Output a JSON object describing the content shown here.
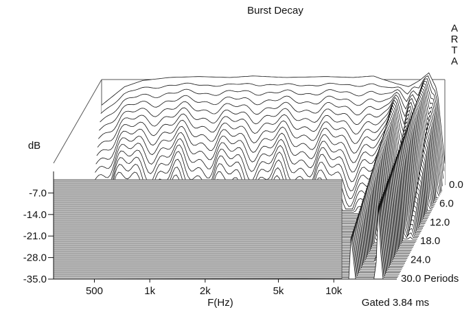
{
  "chart_data": {
    "type": "waterfall",
    "title": "Burst Decay",
    "watermark": "ARTA",
    "xlabel": "F(Hz)",
    "ylabel": "dB",
    "zlabel": "Periods",
    "footer": "Gated 3.84 ms",
    "x_scale": "log",
    "xlim": [
      300,
      22000
    ],
    "x_ticks": [
      {
        "label": "500",
        "value": 500
      },
      {
        "label": "1k",
        "value": 1000
      },
      {
        "label": "2k",
        "value": 2000
      },
      {
        "label": "5k",
        "value": 5000
      },
      {
        "label": "10k",
        "value": 10000
      }
    ],
    "y_ticks": [
      {
        "label": "-7.0",
        "value": -7
      },
      {
        "label": "-14.0",
        "value": -14
      },
      {
        "label": "-21.0",
        "value": -21
      },
      {
        "label": "-28.0",
        "value": -28
      },
      {
        "label": "-35.0",
        "value": -35
      }
    ],
    "ylim": [
      -35,
      0
    ],
    "z_ticks": [
      {
        "label": "0.0",
        "value": 0
      },
      {
        "label": "6.0",
        "value": 6
      },
      {
        "label": "12.0",
        "value": 12
      },
      {
        "label": "18.0",
        "value": 18
      },
      {
        "label": "24.0",
        "value": 24
      },
      {
        "label": "30.0 Periods",
        "value": 30
      }
    ],
    "zlim": [
      0,
      30
    ],
    "slice_count": 60,
    "first_slice": {
      "freq_hz": [
        300,
        400,
        500,
        700,
        1000,
        1500,
        2000,
        3000,
        5000,
        7000,
        9000,
        10000,
        12000,
        14000,
        16000,
        18000,
        20000,
        22000
      ],
      "level_db": [
        -9,
        -3,
        -1,
        0,
        0.3,
        0,
        0.5,
        0,
        0.3,
        0,
        0.5,
        -0.5,
        -2,
        -3,
        -1,
        1.5,
        -4,
        -28
      ]
    },
    "line_color": "#111111",
    "background_color": "#ffffff"
  }
}
